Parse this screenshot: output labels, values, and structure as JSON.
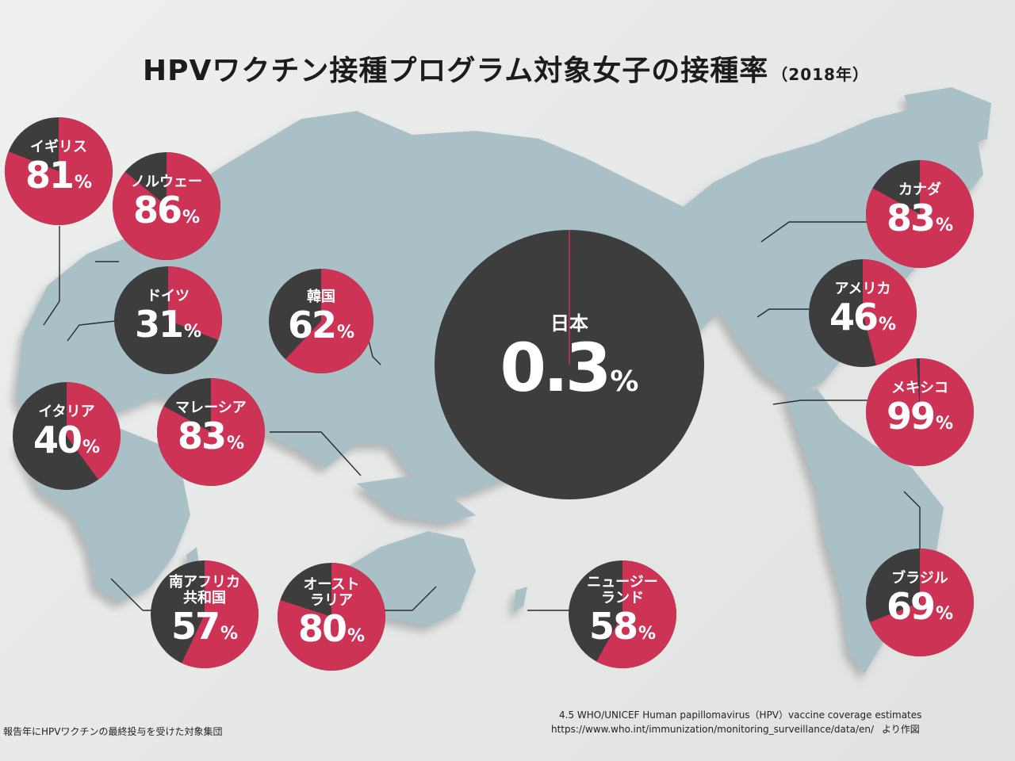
{
  "title": "HPVワクチン接種プログラム対象女子の接種率",
  "title_year": "（2018年）",
  "chart_data": {
    "type": "pie",
    "title": "HPVワクチン接種プログラム対象女子の接種率（2018年）",
    "unit": "%",
    "colors": {
      "vaccinated": "#cc3354",
      "unvaccinated": "#3d3d3d"
    },
    "countries": [
      {
        "name": "イギリス",
        "value": 81,
        "value_label": "81"
      },
      {
        "name": "ノルウェー",
        "value": 86,
        "value_label": "86"
      },
      {
        "name": "ドイツ",
        "value": 31,
        "value_label": "31"
      },
      {
        "name": "韓国",
        "value": 62,
        "value_label": "62"
      },
      {
        "name": "イタリア",
        "value": 40,
        "value_label": "40"
      },
      {
        "name": "マレーシア",
        "value": 83,
        "value_label": "83"
      },
      {
        "name": "南アフリカ\n共和国",
        "value": 57,
        "value_label": "57"
      },
      {
        "name": "オースト\nラリア",
        "value": 80,
        "value_label": "80"
      },
      {
        "name": "日本",
        "value": 0.3,
        "value_label": "0.3"
      },
      {
        "name": "ニュージー\nランド",
        "value": 58,
        "value_label": "58"
      },
      {
        "name": "カナダ",
        "value": 83,
        "value_label": "83"
      },
      {
        "name": "アメリカ",
        "value": 46,
        "value_label": "46"
      },
      {
        "name": "メキシコ",
        "value": 99,
        "value_label": "99"
      },
      {
        "name": "ブラジル",
        "value": 69,
        "value_label": "69"
      }
    ]
  },
  "footnote": "報告年にHPVワクチンの最終投与を受けた対象集団",
  "source": {
    "line1": "4.5 WHO/UNICEF Human papillomavirus（HPV）vaccine coverage estimates",
    "url": "https://www.who.int/immunization/monitoring_surveillance/data/en/",
    "suffix": "より作図"
  }
}
